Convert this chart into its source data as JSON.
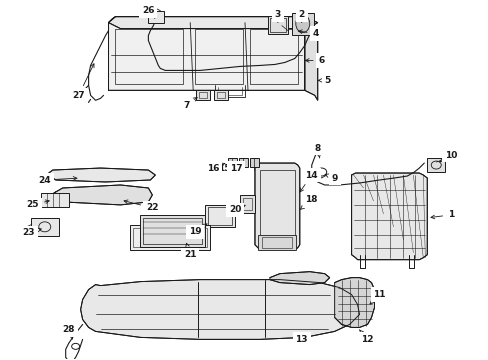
{
  "bg_color": "#ffffff",
  "fig_width": 4.89,
  "fig_height": 3.6,
  "dpi": 100,
  "lc": "#1a1a1a",
  "lw": 0.7
}
